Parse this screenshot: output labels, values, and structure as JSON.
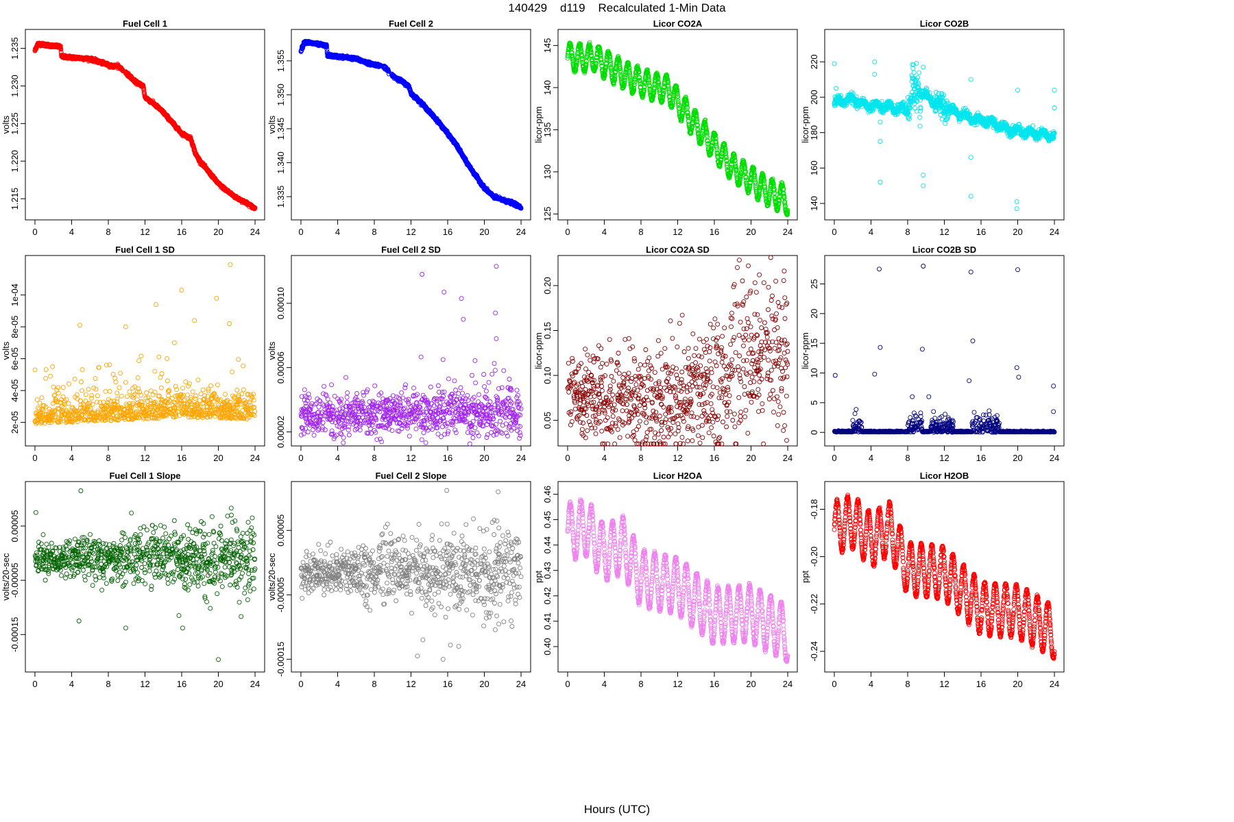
{
  "figure": {
    "title": "140429    d119    Recalculated 1-Min Data",
    "xlabel": "Hours (UTC)"
  },
  "chart_data": [
    {
      "id": "fc1",
      "type": "scatter",
      "title": "Fuel Cell 1",
      "ylabel": "volts",
      "color": "#ff0000",
      "xlim": [
        0,
        24
      ],
      "ylim": [
        1.2132,
        1.2365
      ],
      "xticks": [
        "0",
        "4",
        "8",
        "12",
        "16",
        "20",
        "24"
      ],
      "yticks": [
        "1.215",
        "1.220",
        "1.225",
        "1.230",
        "1.235"
      ],
      "anchors": [
        [
          0,
          1.2347
        ],
        [
          0.3,
          1.2356
        ],
        [
          2.8,
          1.2352
        ],
        [
          2.9,
          1.2339
        ],
        [
          5,
          1.2337
        ],
        [
          6,
          1.2336
        ],
        [
          7.5,
          1.233
        ],
        [
          8.5,
          1.2326
        ],
        [
          9,
          1.2327
        ],
        [
          10,
          1.2317
        ],
        [
          11,
          1.2305
        ],
        [
          11.8,
          1.23
        ],
        [
          12,
          1.2285
        ],
        [
          13,
          1.2276
        ],
        [
          14,
          1.2265
        ],
        [
          15,
          1.2251
        ],
        [
          16,
          1.2237
        ],
        [
          17,
          1.223
        ],
        [
          17.5,
          1.221
        ],
        [
          18,
          1.22
        ],
        [
          19,
          1.2185
        ],
        [
          20,
          1.217
        ],
        [
          21,
          1.216
        ],
        [
          22,
          1.2151
        ],
        [
          23,
          1.2145
        ],
        [
          24,
          1.2137
        ]
      ]
    },
    {
      "id": "fc2",
      "type": "scatter",
      "title": "Fuel Cell 2",
      "ylabel": "volts",
      "color": "#0000ff",
      "xlim": [
        0,
        24
      ],
      "ylim": [
        1.3327,
        1.3585
      ],
      "xticks": [
        "0",
        "4",
        "8",
        "12",
        "16",
        "20",
        "24"
      ],
      "yticks": [
        "1.335",
        "1.340",
        "1.345",
        "1.350",
        "1.355"
      ],
      "anchors": [
        [
          0,
          1.3565
        ],
        [
          0.4,
          1.3578
        ],
        [
          2.8,
          1.3572
        ],
        [
          2.9,
          1.3558
        ],
        [
          5,
          1.3555
        ],
        [
          6,
          1.3553
        ],
        [
          7.5,
          1.3546
        ],
        [
          9,
          1.3542
        ],
        [
          10,
          1.3528
        ],
        [
          11,
          1.352
        ],
        [
          11.8,
          1.3512
        ],
        [
          12,
          1.3502
        ],
        [
          13,
          1.349
        ],
        [
          14,
          1.3475
        ],
        [
          15,
          1.346
        ],
        [
          16,
          1.3443
        ],
        [
          17,
          1.3425
        ],
        [
          18,
          1.3402
        ],
        [
          19,
          1.3382
        ],
        [
          20,
          1.3363
        ],
        [
          21,
          1.335
        ],
        [
          22,
          1.3345
        ],
        [
          23,
          1.3341
        ],
        [
          24,
          1.3334
        ]
      ]
    },
    {
      "id": "co2a",
      "type": "scatter",
      "title": "Licor CO2A",
      "ylabel": "licor-ppm",
      "color": "#00dd00",
      "xlim": [
        0,
        24
      ],
      "ylim": [
        125.2,
        146
      ],
      "xticks": [
        "0",
        "4",
        "8",
        "12",
        "16",
        "20",
        "24"
      ],
      "yticks": [
        "125",
        "130",
        "135",
        "140",
        "145"
      ],
      "anchors": [
        [
          0,
          143.6
        ],
        [
          3,
          143.5
        ],
        [
          6,
          141.6
        ],
        [
          9,
          140.2
        ],
        [
          11,
          139.8
        ],
        [
          12,
          138.3
        ],
        [
          14,
          135.5
        ],
        [
          16,
          133.0
        ],
        [
          18,
          130.5
        ],
        [
          20,
          129.0
        ],
        [
          22,
          127.5
        ],
        [
          24,
          126.6
        ]
      ],
      "osc_amp": 1.6,
      "osc_period": 1.05
    },
    {
      "id": "co2b",
      "type": "scatter",
      "title": "Licor CO2B",
      "ylabel": "licor-ppm",
      "color": "#00e5ee",
      "xlim": [
        0,
        24
      ],
      "ylim": [
        135,
        234
      ],
      "xticks": [
        "0",
        "4",
        "8",
        "12",
        "16",
        "20",
        "24"
      ],
      "yticks": [
        "140",
        "160",
        "180",
        "200",
        "220"
      ],
      "anchors": [
        [
          0,
          197
        ],
        [
          2,
          199
        ],
        [
          3,
          196
        ],
        [
          8,
          193
        ],
        [
          8.5,
          205
        ],
        [
          9.5,
          203
        ],
        [
          11,
          197
        ],
        [
          13,
          192
        ],
        [
          15,
          188
        ],
        [
          17,
          186
        ],
        [
          19,
          182
        ],
        [
          21,
          180
        ],
        [
          24,
          178
        ]
      ]
    },
    {
      "id": "fc1sd",
      "type": "scatter",
      "title": "Fuel Cell 1 SD",
      "ylabel": "volts",
      "color": "#ffa500",
      "xlim": [
        0,
        24
      ],
      "ylim": [
        1e-05,
        0.00012
      ],
      "xticks": [
        "0",
        "4",
        "8",
        "12",
        "16",
        "20",
        "24"
      ],
      "yticks": [
        "2e-05",
        "4e-05",
        "6e-05",
        "8e-05",
        "1e-04"
      ],
      "ytick_values": [
        2e-05,
        4e-05,
        6e-05,
        8e-05,
        0.0001
      ],
      "anchors": [
        [
          0,
          1.9e-05
        ],
        [
          8,
          2.1e-05
        ],
        [
          16,
          2.3e-05
        ],
        [
          24,
          2.2e-05
        ]
      ]
    },
    {
      "id": "fc2sd",
      "type": "scatter",
      "title": "Fuel Cell 2 SD",
      "ylabel": "volts",
      "color": "#a020f0",
      "xlim": [
        0,
        24
      ],
      "ylim": [
        1.6e-05,
        0.000125
      ],
      "xticks": [
        "0",
        "4",
        "8",
        "12",
        "16",
        "20",
        "24"
      ],
      "yticks": [
        "0.00002",
        "0.00006",
        "0.00010"
      ],
      "ytick_values": [
        2e-05,
        6e-05,
        0.0001
      ],
      "anchors": [
        [
          0,
          3e-05
        ],
        [
          12,
          3.2e-05
        ],
        [
          24,
          3.1e-05
        ]
      ]
    },
    {
      "id": "co2asd",
      "type": "scatter",
      "title": "Licor CO2A SD",
      "ylabel": "licor-ppm",
      "color": "#8b0000",
      "xlim": [
        0,
        24
      ],
      "ylim": [
        0.03,
        0.225
      ],
      "xticks": [
        "0",
        "4",
        "8",
        "12",
        "16",
        "20",
        "24"
      ],
      "yticks": [
        "0.05",
        "0.10",
        "0.15",
        "0.20"
      ],
      "anchors": [
        [
          0,
          0.08
        ],
        [
          10,
          0.07
        ],
        [
          14,
          0.08
        ],
        [
          18,
          0.1
        ],
        [
          24,
          0.13
        ]
      ]
    },
    {
      "id": "co2bsd",
      "type": "scatter",
      "title": "Licor CO2B SD",
      "ylabel": "licor-ppm",
      "color": "#000080",
      "xlim": [
        0,
        24
      ],
      "ylim": [
        -1,
        28.5
      ],
      "xticks": [
        "0",
        "4",
        "8",
        "12",
        "16",
        "20",
        "24"
      ],
      "yticks": [
        "0",
        "5",
        "10",
        "15",
        "20",
        "25"
      ],
      "anchors": [
        [
          0,
          0.1
        ],
        [
          24,
          0.1
        ]
      ]
    },
    {
      "id": "fc1slope",
      "type": "scatter",
      "title": "Fuel Cell 1 Slope",
      "ylabel": "volts/20-sec",
      "color": "#006400",
      "xlim": [
        0,
        24
      ],
      "ylim": [
        -0.000205,
        0.000118
      ],
      "xticks": [
        "0",
        "4",
        "8",
        "12",
        "16",
        "20",
        "24"
      ],
      "yticks": [
        "-0.00015",
        "-0.00005",
        "0.00005"
      ],
      "ytick_values": [
        -0.00015,
        -5e-05,
        5e-05
      ],
      "anchors": [
        [
          0,
          -1e-05
        ],
        [
          24,
          -1e-05
        ]
      ]
    },
    {
      "id": "fc2slope",
      "type": "scatter",
      "title": "Fuel Cell 2 Slope",
      "ylabel": "volts/20-sec",
      "color": "#808080",
      "xlim": [
        0,
        24
      ],
      "ylim": [
        -0.000158,
        0.000114
      ],
      "xticks": [
        "0",
        "4",
        "8",
        "12",
        "16",
        "20",
        "24"
      ],
      "yticks": [
        "-0.00015",
        "-0.00005",
        "0.00005"
      ],
      "ytick_values": [
        -0.00015,
        -5e-05,
        5e-05
      ],
      "anchors": [
        [
          0,
          -1.5e-05
        ],
        [
          24,
          -1.5e-05
        ]
      ]
    },
    {
      "id": "h2oa",
      "type": "scatter",
      "title": "Licor H2OA",
      "ylabel": "ppt",
      "color": "#ee82ee",
      "xlim": [
        0,
        24
      ],
      "ylim": [
        0.393,
        0.462
      ],
      "xticks": [
        "0",
        "4",
        "8",
        "12",
        "16",
        "20",
        "24"
      ],
      "yticks": [
        "0.40",
        "0.41",
        "0.42",
        "0.43",
        "0.44",
        "0.45",
        "0.46"
      ],
      "anchors": [
        [
          0,
          0.445
        ],
        [
          2,
          0.447
        ],
        [
          4,
          0.437
        ],
        [
          6,
          0.44
        ],
        [
          8,
          0.427
        ],
        [
          12,
          0.424
        ],
        [
          16,
          0.412
        ],
        [
          20,
          0.413
        ],
        [
          24,
          0.405
        ]
      ],
      "osc_amp": 0.011,
      "osc_period": 1.15
    },
    {
      "id": "h2ob",
      "type": "scatter",
      "title": "Licor H2OB",
      "ylabel": "ppt",
      "color": "#ff0000",
      "xlim": [
        0,
        24
      ],
      "ylim": [
        -0.2455,
        -0.1715
      ],
      "xticks": [
        "0",
        "4",
        "8",
        "12",
        "16",
        "20",
        "24"
      ],
      "yticks": [
        "-0.24",
        "-0.22",
        "-0.20",
        "-0.18"
      ],
      "anchors": [
        [
          0,
          -0.188
        ],
        [
          2,
          -0.185
        ],
        [
          4,
          -0.193
        ],
        [
          6,
          -0.188
        ],
        [
          8,
          -0.205
        ],
        [
          12,
          -0.207
        ],
        [
          16,
          -0.222
        ],
        [
          20,
          -0.223
        ],
        [
          24,
          -0.232
        ]
      ],
      "osc_amp": 0.011,
      "osc_period": 1.15
    }
  ]
}
